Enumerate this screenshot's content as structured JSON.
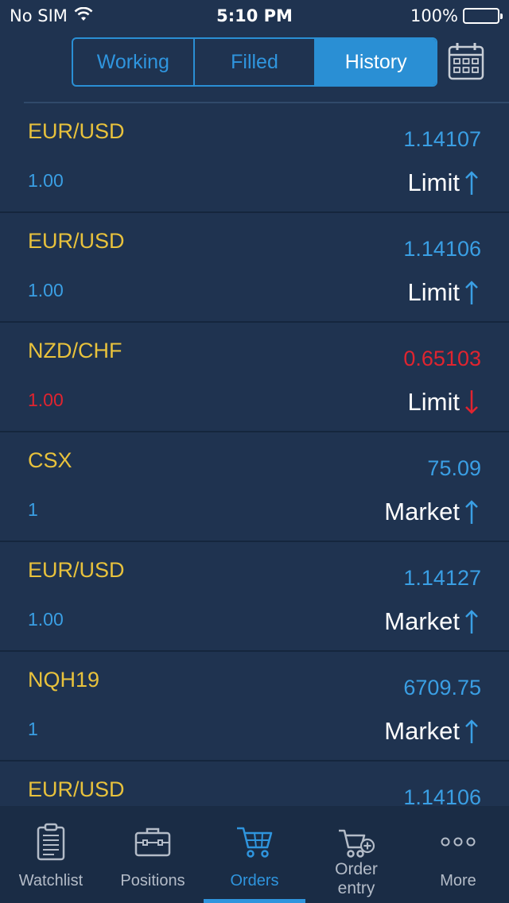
{
  "status_bar": {
    "carrier": "No SIM",
    "time": "5:10 PM",
    "battery": "100%"
  },
  "segments": {
    "working": "Working",
    "filled": "Filled",
    "history": "History",
    "selected": "History"
  },
  "orders": [
    {
      "symbol": "EUR/USD",
      "price": "1.14107",
      "qty": "1.00",
      "type": "Limit",
      "side": "buy"
    },
    {
      "symbol": "EUR/USD",
      "price": "1.14106",
      "qty": "1.00",
      "type": "Limit",
      "side": "buy"
    },
    {
      "symbol": "NZD/CHF",
      "price": "0.65103",
      "qty": "1.00",
      "type": "Limit",
      "side": "sell"
    },
    {
      "symbol": "CSX",
      "price": "75.09",
      "qty": "1",
      "type": "Market",
      "side": "buy"
    },
    {
      "symbol": "EUR/USD",
      "price": "1.14127",
      "qty": "1.00",
      "type": "Market",
      "side": "buy"
    },
    {
      "symbol": "NQH19",
      "price": "6709.75",
      "qty": "1",
      "type": "Market",
      "side": "buy"
    },
    {
      "symbol": "EUR/USD",
      "price": "1.14106",
      "qty": "",
      "type": "",
      "side": "buy"
    }
  ],
  "tabbar": {
    "watchlist": "Watchlist",
    "positions": "Positions",
    "orders": "Orders",
    "order_entry_line1": "Order",
    "order_entry_line2": "entry",
    "more": "More",
    "active": "Orders"
  },
  "colors": {
    "background": "#1f3350",
    "accent": "#2f95de",
    "symbol": "#e8c23c",
    "buy": "#3a9fe4",
    "sell": "#e0242f"
  }
}
